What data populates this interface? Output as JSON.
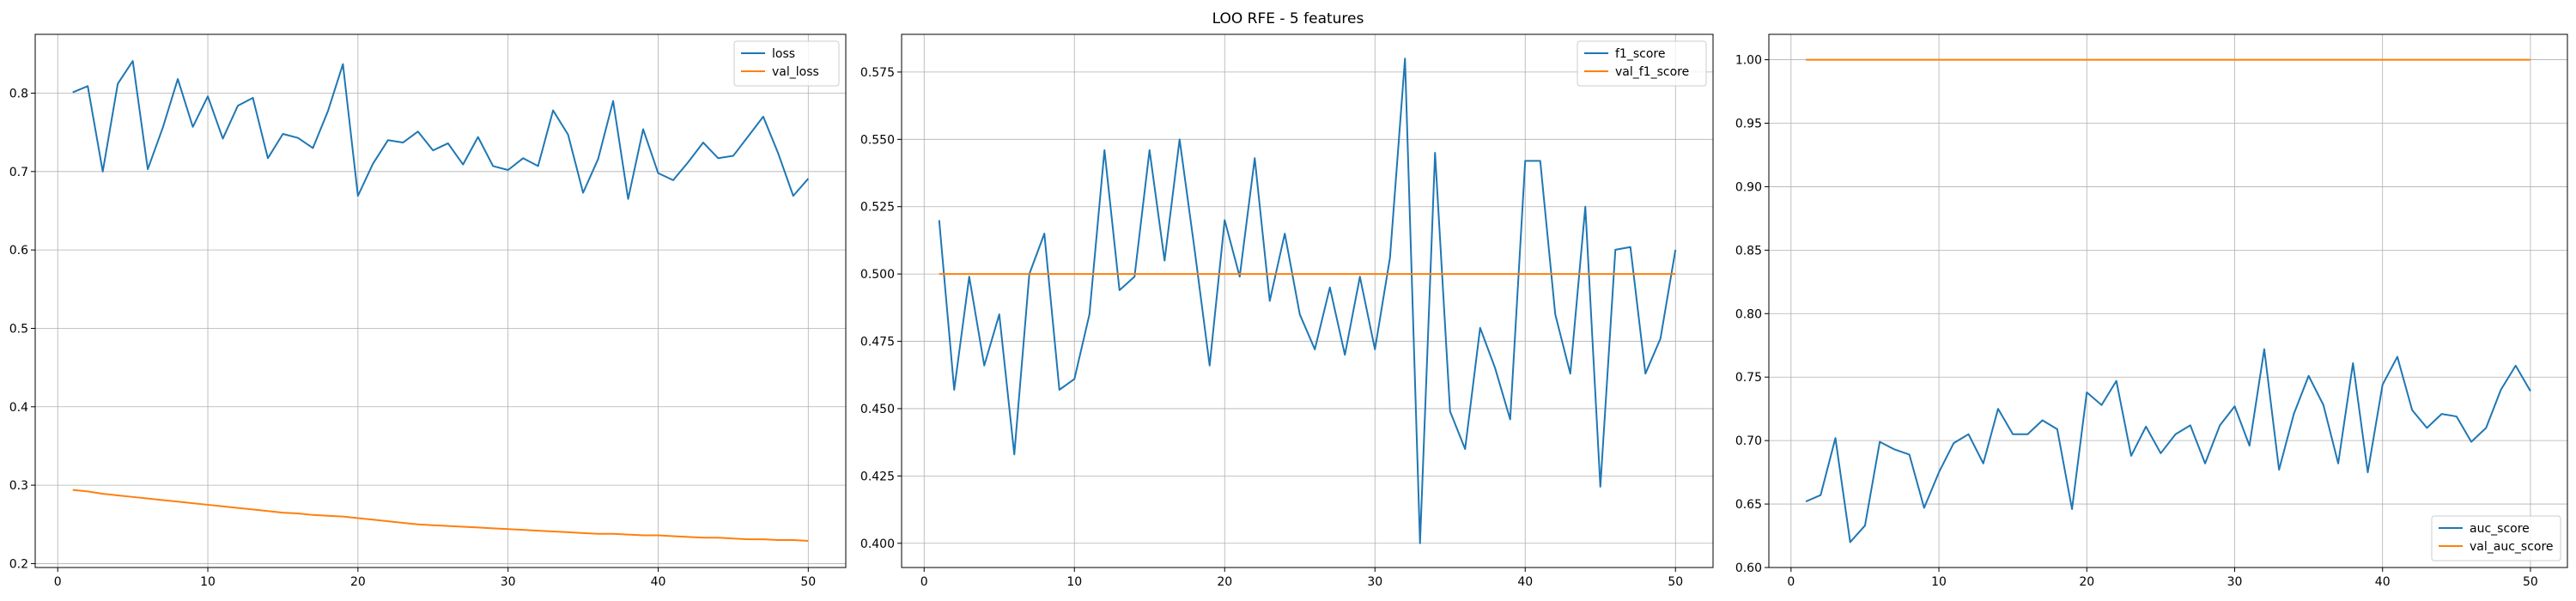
{
  "figure": {
    "title": "LOO RFE - 5 features"
  },
  "chart_data": [
    {
      "type": "line",
      "title": "",
      "xlabel": "",
      "ylabel": "",
      "xlim": [
        -1.5,
        52.5
      ],
      "ylim": [
        0.195,
        0.875
      ],
      "xticks": [
        0,
        10,
        20,
        30,
        40,
        50
      ],
      "yticks": [
        0.2,
        0.3,
        0.4,
        0.5,
        0.6,
        0.7,
        0.8
      ],
      "ytick_labels": [
        "0.2",
        "0.3",
        "0.4",
        "0.5",
        "0.6",
        "0.7",
        "0.8"
      ],
      "grid": true,
      "legend_loc": "top-right",
      "x": [
        1,
        2,
        3,
        4,
        5,
        6,
        7,
        8,
        9,
        10,
        11,
        12,
        13,
        14,
        15,
        16,
        17,
        18,
        19,
        20,
        21,
        22,
        23,
        24,
        25,
        26,
        27,
        28,
        29,
        30,
        31,
        32,
        33,
        34,
        35,
        36,
        37,
        38,
        39,
        40,
        41,
        42,
        43,
        44,
        45,
        46,
        47,
        48,
        49,
        50
      ],
      "series": [
        {
          "name": "loss",
          "color": "#1f77b4",
          "values": [
            0.801,
            0.809,
            0.7,
            0.812,
            0.841,
            0.703,
            0.756,
            0.818,
            0.757,
            0.796,
            0.742,
            0.784,
            0.794,
            0.717,
            0.748,
            0.743,
            0.73,
            0.777,
            0.837,
            0.669,
            0.71,
            0.74,
            0.737,
            0.751,
            0.727,
            0.736,
            0.709,
            0.744,
            0.707,
            0.702,
            0.717,
            0.707,
            0.778,
            0.747,
            0.673,
            0.716,
            0.79,
            0.665,
            0.754,
            0.698,
            0.689,
            0.712,
            0.737,
            0.717,
            0.72,
            0.745,
            0.77,
            0.723,
            0.669,
            0.691
          ]
        },
        {
          "name": "val_loss",
          "color": "#ff7f0e",
          "values": [
            0.294,
            0.292,
            0.289,
            0.287,
            0.285,
            0.283,
            0.281,
            0.279,
            0.277,
            0.275,
            0.273,
            0.271,
            0.269,
            0.267,
            0.265,
            0.264,
            0.262,
            0.261,
            0.26,
            0.258,
            0.256,
            0.254,
            0.252,
            0.25,
            0.249,
            0.248,
            0.247,
            0.246,
            0.245,
            0.244,
            0.243,
            0.242,
            0.241,
            0.24,
            0.239,
            0.238,
            0.238,
            0.237,
            0.236,
            0.236,
            0.235,
            0.234,
            0.233,
            0.233,
            0.232,
            0.231,
            0.231,
            0.23,
            0.23,
            0.229
          ]
        }
      ]
    },
    {
      "type": "line",
      "title": "",
      "xlabel": "",
      "ylabel": "",
      "xlim": [
        -1.5,
        52.5
      ],
      "ylim": [
        0.391,
        0.589
      ],
      "xticks": [
        0,
        10,
        20,
        30,
        40,
        50
      ],
      "yticks": [
        0.4,
        0.425,
        0.45,
        0.475,
        0.5,
        0.525,
        0.55,
        0.575
      ],
      "ytick_labels": [
        "0.400",
        "0.425",
        "0.450",
        "0.475",
        "0.500",
        "0.525",
        "0.550",
        "0.575"
      ],
      "grid": true,
      "legend_loc": "top-right",
      "x": [
        1,
        2,
        3,
        4,
        5,
        6,
        7,
        8,
        9,
        10,
        11,
        12,
        13,
        14,
        15,
        16,
        17,
        18,
        19,
        20,
        21,
        22,
        23,
        24,
        25,
        26,
        27,
        28,
        29,
        30,
        31,
        32,
        33,
        34,
        35,
        36,
        37,
        38,
        39,
        40,
        41,
        42,
        43,
        44,
        45,
        46,
        47,
        48,
        49,
        50
      ],
      "series": [
        {
          "name": "f1_score",
          "color": "#1f77b4",
          "values": [
            0.52,
            0.457,
            0.499,
            0.466,
            0.485,
            0.433,
            0.5,
            0.515,
            0.457,
            0.461,
            0.485,
            0.546,
            0.494,
            0.499,
            0.546,
            0.505,
            0.55,
            0.509,
            0.466,
            0.52,
            0.499,
            0.543,
            0.49,
            0.515,
            0.485,
            0.472,
            0.495,
            0.47,
            0.499,
            0.472,
            0.506,
            0.58,
            0.4,
            0.545,
            0.449,
            0.435,
            0.48,
            0.465,
            0.446,
            0.542,
            0.542,
            0.485,
            0.463,
            0.525,
            0.421,
            0.509,
            0.51,
            0.463,
            0.476,
            0.509
          ]
        },
        {
          "name": "val_f1_score",
          "color": "#ff7f0e",
          "values": [
            0.5,
            0.5,
            0.5,
            0.5,
            0.5,
            0.5,
            0.5,
            0.5,
            0.5,
            0.5,
            0.5,
            0.5,
            0.5,
            0.5,
            0.5,
            0.5,
            0.5,
            0.5,
            0.5,
            0.5,
            0.5,
            0.5,
            0.5,
            0.5,
            0.5,
            0.5,
            0.5,
            0.5,
            0.5,
            0.5,
            0.5,
            0.5,
            0.5,
            0.5,
            0.5,
            0.5,
            0.5,
            0.5,
            0.5,
            0.5,
            0.5,
            0.5,
            0.5,
            0.5,
            0.5,
            0.5,
            0.5,
            0.5,
            0.5,
            0.5
          ]
        }
      ]
    },
    {
      "type": "line",
      "title": "",
      "xlabel": "",
      "ylabel": "",
      "xlim": [
        -1.5,
        52.5
      ],
      "ylim": [
        0.6,
        1.02
      ],
      "xticks": [
        0,
        10,
        20,
        30,
        40,
        50
      ],
      "yticks": [
        0.6,
        0.65,
        0.7,
        0.75,
        0.8,
        0.85,
        0.9,
        0.95,
        1.0
      ],
      "ytick_labels": [
        "0.60",
        "0.65",
        "0.70",
        "0.75",
        "0.80",
        "0.85",
        "0.90",
        "0.95",
        "1.00"
      ],
      "grid": true,
      "legend_loc": "bottom-right",
      "x": [
        1,
        2,
        3,
        4,
        5,
        6,
        7,
        8,
        9,
        10,
        11,
        12,
        13,
        14,
        15,
        16,
        17,
        18,
        19,
        20,
        21,
        22,
        23,
        24,
        25,
        26,
        27,
        28,
        29,
        30,
        31,
        32,
        33,
        34,
        35,
        36,
        37,
        38,
        39,
        40,
        41,
        42,
        43,
        44,
        45,
        46,
        47,
        48,
        49,
        50
      ],
      "series": [
        {
          "name": "auc_score",
          "color": "#1f77b4",
          "values": [
            0.652,
            0.657,
            0.702,
            0.62,
            0.633,
            0.699,
            0.693,
            0.689,
            0.647,
            0.675,
            0.698,
            0.705,
            0.682,
            0.725,
            0.705,
            0.705,
            0.716,
            0.709,
            0.646,
            0.738,
            0.728,
            0.747,
            0.688,
            0.711,
            0.69,
            0.705,
            0.712,
            0.682,
            0.712,
            0.727,
            0.696,
            0.772,
            0.677,
            0.721,
            0.751,
            0.728,
            0.682,
            0.761,
            0.675,
            0.744,
            0.766,
            0.724,
            0.71,
            0.721,
            0.719,
            0.699,
            0.71,
            0.74,
            0.759,
            0.739
          ]
        },
        {
          "name": "val_auc_score",
          "color": "#ff7f0e",
          "values": [
            1.0,
            1.0,
            1.0,
            1.0,
            1.0,
            1.0,
            1.0,
            1.0,
            1.0,
            1.0,
            1.0,
            1.0,
            1.0,
            1.0,
            1.0,
            1.0,
            1.0,
            1.0,
            1.0,
            1.0,
            1.0,
            1.0,
            1.0,
            1.0,
            1.0,
            1.0,
            1.0,
            1.0,
            1.0,
            1.0,
            1.0,
            1.0,
            1.0,
            1.0,
            1.0,
            1.0,
            1.0,
            1.0,
            1.0,
            1.0,
            1.0,
            1.0,
            1.0,
            1.0,
            1.0,
            1.0,
            1.0,
            1.0,
            1.0,
            1.0
          ]
        }
      ]
    }
  ]
}
